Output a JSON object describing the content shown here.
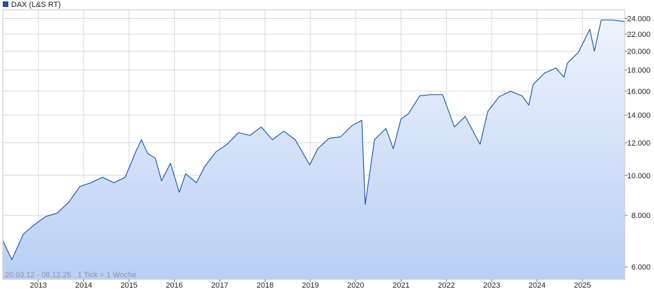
{
  "chart_data": {
    "type": "area",
    "legend": {
      "label": "DAX (L&S RT)",
      "placement": "top-left"
    },
    "series": [
      {
        "name": "DAX (L&S RT)",
        "x": [
          "2012-03-20",
          "2012-06-01",
          "2012-09-01",
          "2012-12-01",
          "2013-03-01",
          "2013-06-01",
          "2013-09-01",
          "2013-12-01",
          "2014-03-01",
          "2014-06-01",
          "2014-09-01",
          "2014-12-01",
          "2015-03-01",
          "2015-04-10",
          "2015-06-01",
          "2015-08-01",
          "2015-09-20",
          "2015-12-01",
          "2016-02-10",
          "2016-04-01",
          "2016-06-27",
          "2016-09-01",
          "2016-12-01",
          "2017-03-01",
          "2017-06-01",
          "2017-09-01",
          "2017-12-01",
          "2018-03-01",
          "2018-06-01",
          "2018-09-01",
          "2018-12-27",
          "2019-03-01",
          "2019-06-01",
          "2019-09-01",
          "2019-12-01",
          "2020-02-19",
          "2020-03-18",
          "2020-06-01",
          "2020-09-01",
          "2020-10-30",
          "2020-12-31",
          "2021-03-01",
          "2021-06-01",
          "2021-09-01",
          "2021-12-01",
          "2022-03-07",
          "2022-06-01",
          "2022-09-29",
          "2022-12-01",
          "2023-03-01",
          "2023-06-01",
          "2023-09-01",
          "2023-10-27",
          "2023-12-01",
          "2024-03-01",
          "2024-06-01",
          "2024-08-05",
          "2024-09-01",
          "2024-12-01",
          "2025-03-01",
          "2025-04-07",
          "2025-06-01",
          "2025-09-01",
          "2025-12-08"
        ],
        "values": [
          6950,
          6250,
          7200,
          7600,
          7950,
          8100,
          8600,
          9400,
          9600,
          9900,
          9600,
          9900,
          11500,
          12200,
          11300,
          11000,
          9700,
          10700,
          9100,
          10100,
          9600,
          10500,
          11400,
          11900,
          12700,
          12500,
          13100,
          12200,
          12800,
          12200,
          10600,
          11600,
          12300,
          12400,
          13200,
          13600,
          8500,
          12200,
          13000,
          11600,
          13700,
          14100,
          15600,
          15700,
          15700,
          13100,
          13900,
          11900,
          14300,
          15500,
          16000,
          15600,
          14800,
          16600,
          17700,
          18200,
          17300,
          18700,
          19900,
          22600,
          20000,
          23800,
          23800,
          23600
        ]
      }
    ],
    "y_scale": "log",
    "ylim": [
      5600,
      25200
    ],
    "y_ticks": [
      6000,
      8000,
      10000,
      12000,
      14000,
      16000,
      18000,
      20000,
      22000,
      24000
    ],
    "y_tick_labels": [
      "6.000",
      "8.000",
      "10.000",
      "12.000",
      "14.000",
      "16.000",
      "18.000",
      "20.000",
      "22.000",
      "24.000"
    ],
    "xlim": [
      "2012-03-20",
      "2025-12-08"
    ],
    "x_ticks": [
      "2013-01-01",
      "2014-01-01",
      "2015-01-01",
      "2016-01-01",
      "2017-01-01",
      "2018-01-01",
      "2019-01-01",
      "2020-01-01",
      "2021-01-01",
      "2022-01-01",
      "2023-01-01",
      "2024-01-01",
      "2025-01-01"
    ],
    "x_tick_labels": [
      "2013",
      "2014",
      "2015",
      "2016",
      "2017",
      "2018",
      "2019",
      "2020",
      "2021",
      "2022",
      "2023",
      "2024",
      "2025"
    ],
    "range_text": "20.03.12 - 08.12.25   1 Tick = 1 Woche",
    "grid": true,
    "colors": {
      "line": "#1f5bb4",
      "fill_top": "#eef3fc",
      "fill_bottom": "#b9cff5",
      "grid": "#d8d8d8",
      "legend_box": "#1e4f9c"
    }
  }
}
